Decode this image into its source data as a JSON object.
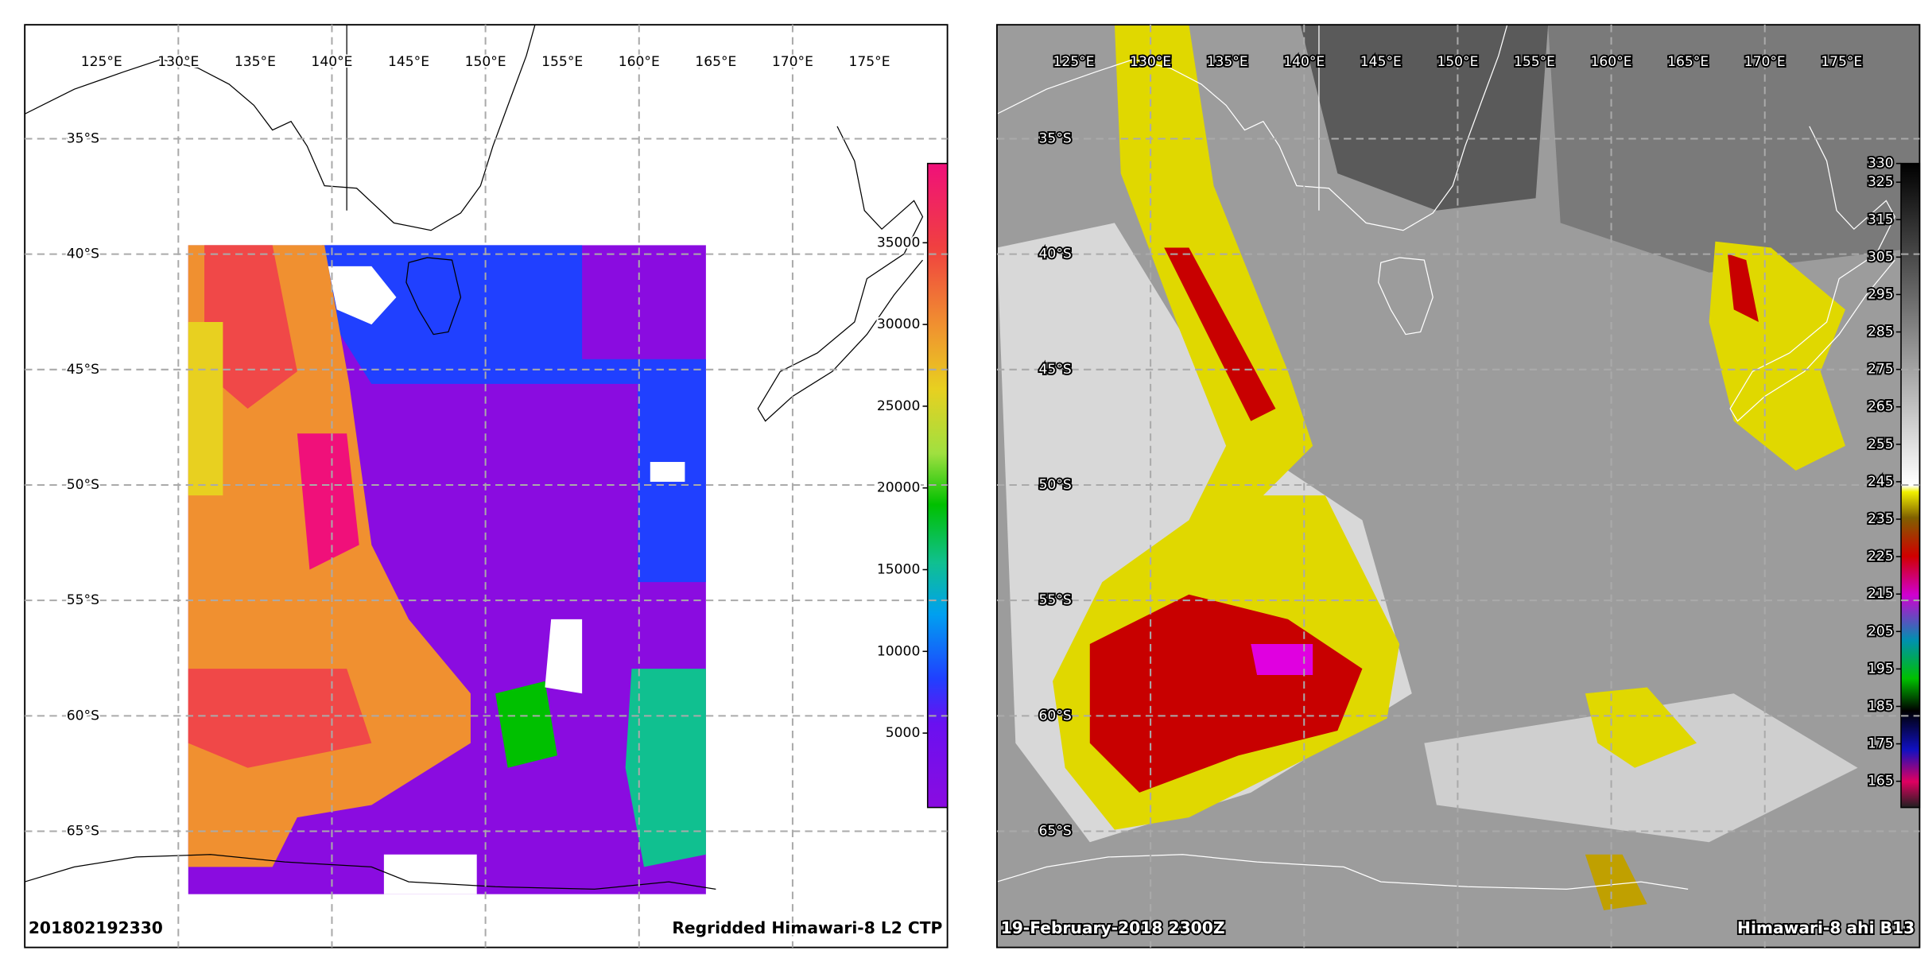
{
  "panels": [
    {
      "lon_labels": [
        {
          "value": 125,
          "label": "125°E"
        },
        {
          "value": 130,
          "label": "130°E"
        },
        {
          "value": 135,
          "label": "135°E"
        },
        {
          "value": 140,
          "label": "140°E"
        },
        {
          "value": 145,
          "label": "145°E"
        },
        {
          "value": 150,
          "label": "150°E"
        },
        {
          "value": 155,
          "label": "155°E"
        },
        {
          "value": 160,
          "label": "160°E"
        },
        {
          "value": 165,
          "label": "165°E"
        },
        {
          "value": 170,
          "label": "170°E"
        },
        {
          "value": 175,
          "label": "175°E"
        }
      ],
      "lat_labels": [
        {
          "value": -35,
          "label": "35°S"
        },
        {
          "value": -40,
          "label": "40°S"
        },
        {
          "value": -45,
          "label": "45°S"
        },
        {
          "value": -50,
          "label": "50°S"
        },
        {
          "value": -55,
          "label": "55°S"
        },
        {
          "value": -60,
          "label": "60°S"
        },
        {
          "value": -65,
          "label": "65°S"
        }
      ],
      "colorbar": {
        "clim": [
          450,
          39850
        ],
        "ticks": [
          5000,
          10000,
          15000,
          20000,
          25000,
          30000,
          35000
        ]
      },
      "left_label": "201802192330",
      "right_label": "Regridded Himawari-8 L2 CTP"
    },
    {
      "lon_labels": [
        {
          "value": 125,
          "label": "125°E"
        },
        {
          "value": 130,
          "label": "130°E"
        },
        {
          "value": 135,
          "label": "135°E"
        },
        {
          "value": 140,
          "label": "140°E"
        },
        {
          "value": 145,
          "label": "145°E"
        },
        {
          "value": 150,
          "label": "150°E"
        },
        {
          "value": 155,
          "label": "155°E"
        },
        {
          "value": 160,
          "label": "160°E"
        },
        {
          "value": 165,
          "label": "165°E"
        },
        {
          "value": 170,
          "label": "170°E"
        },
        {
          "value": 175,
          "label": "175°E"
        }
      ],
      "lat_labels": [
        {
          "value": -35,
          "label": "35°S"
        },
        {
          "value": -40,
          "label": "40°S"
        },
        {
          "value": -45,
          "label": "45°S"
        },
        {
          "value": -50,
          "label": "50°S"
        },
        {
          "value": -55,
          "label": "55°S"
        },
        {
          "value": -60,
          "label": "60°S"
        },
        {
          "value": -65,
          "label": "65°S"
        }
      ],
      "colorbar": {
        "clim": [
          158,
          330
        ],
        "ticks": [
          165,
          175,
          185,
          195,
          205,
          215,
          225,
          235,
          245,
          255,
          265,
          275,
          285,
          295,
          305,
          315,
          325,
          330
        ]
      },
      "left_label": "19-February-2018 2300Z",
      "right_label": "Himawari-8 ahi B13"
    }
  ]
}
